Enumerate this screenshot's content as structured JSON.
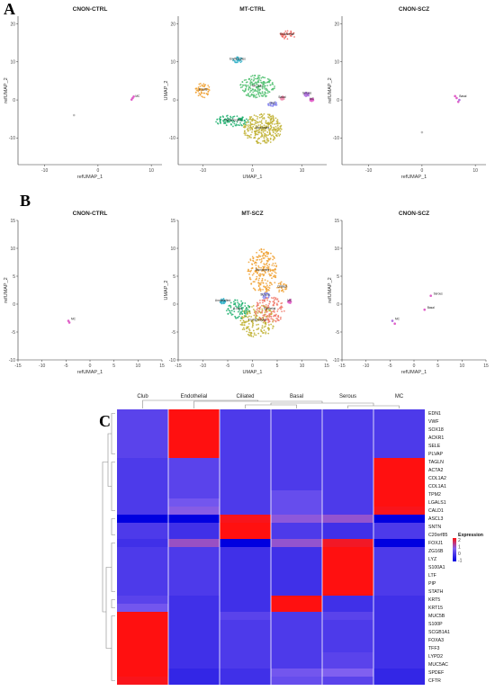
{
  "panel_labels": [
    "A",
    "B",
    "C"
  ],
  "umap_x_label": "refUMAP_1",
  "umap_y_label": "refUMAP_2",
  "umap_x_label_center": "UMAP_1",
  "umap_y_label_center": "UMAP_2",
  "chart_data": [
    {
      "type": "scatter",
      "title": "CNON-CTRL",
      "xlabel": "refUMAP_1",
      "ylabel": "refUMAP_2",
      "xlim": [
        -15,
        12
      ],
      "ylim": [
        -17,
        22
      ],
      "xticks": [
        "-10",
        "0",
        "10"
      ],
      "yticks": [
        "20",
        "10",
        "0",
        "-10"
      ],
      "cluster_labels": [
        "MC"
      ],
      "points": [
        {
          "x": 6.5,
          "y": 0.5,
          "color": "#e060c8"
        },
        {
          "x": 6.3,
          "y": 0.1,
          "color": "#e060c8"
        },
        {
          "x": 6.7,
          "y": 0.9,
          "color": "#e060c8"
        },
        {
          "x": -4.5,
          "y": -4.0,
          "color": "#bbbbbb"
        }
      ]
    },
    {
      "type": "scatter",
      "title": "MT-CTRL",
      "xlabel": "UMAP_1",
      "ylabel": "UMAP_2",
      "xlim": [
        -15,
        15
      ],
      "ylim": [
        -17,
        22
      ],
      "xticks": [
        "-10",
        "0",
        "10"
      ],
      "yticks": [
        "20",
        "10",
        "0",
        "-10"
      ],
      "cluster_labels": [
        "Endothelial",
        "Erythrocytes",
        "B cells",
        "T lymphocytes",
        "NK cells",
        "Monocytes",
        "Club",
        "Basal",
        "Serous",
        "MC"
      ],
      "clusters": [
        {
          "label": "Endothelial",
          "cx": 7,
          "cy": 17,
          "rx": 1.6,
          "ry": 1.2,
          "color": "#f0605a"
        },
        {
          "label": "Erythrocytes",
          "cx": -3,
          "cy": 10.5,
          "rx": 1.0,
          "ry": 0.8,
          "color": "#30b0c8"
        },
        {
          "label": "B cells",
          "cx": -10,
          "cy": 2.5,
          "rx": 1.5,
          "ry": 2.0,
          "color": "#f0a030"
        },
        {
          "label": "T lymphocytes",
          "cx": -4,
          "cy": -5.5,
          "rx": 3.5,
          "ry": 1.5,
          "color": "#20b070"
        },
        {
          "label": "NK cells",
          "cx": 1,
          "cy": 3.5,
          "rx": 3.5,
          "ry": 3.0,
          "color": "#50c070"
        },
        {
          "label": "Monocytes",
          "cx": 2,
          "cy": -7.5,
          "rx": 4.0,
          "ry": 4.0,
          "color": "#c0b030"
        },
        {
          "label": "Club",
          "cx": 4,
          "cy": -1,
          "rx": 1.0,
          "ry": 0.8,
          "color": "#8888ee"
        },
        {
          "label": "Basal",
          "cx": 6,
          "cy": 0.5,
          "rx": 0.5,
          "ry": 0.5,
          "color": "#f090b0"
        },
        {
          "label": "Serous",
          "cx": 11,
          "cy": 1.5,
          "rx": 0.6,
          "ry": 0.6,
          "color": "#b070e0"
        },
        {
          "label": "MC",
          "cx": 12,
          "cy": 0,
          "rx": 0.4,
          "ry": 0.4,
          "color": "#e060c8"
        }
      ]
    },
    {
      "type": "scatter",
      "title": "CNON-SCZ",
      "xlabel": "refUMAP_1",
      "ylabel": "refUMAP_2",
      "xlim": [
        -15,
        12
      ],
      "ylim": [
        -17,
        22
      ],
      "xticks": [
        "-10",
        "0",
        "10"
      ],
      "yticks": [
        "20",
        "10",
        "0",
        "-10"
      ],
      "cluster_labels": [
        "Basal"
      ],
      "points": [
        {
          "x": 6.5,
          "y": 0.5,
          "color": "#e060c8"
        },
        {
          "x": 6.8,
          "y": -0.5,
          "color": "#e060c8"
        },
        {
          "x": 6.2,
          "y": 1.0,
          "color": "#e060c8"
        },
        {
          "x": 7.0,
          "y": 0.0,
          "color": "#b070e0"
        },
        {
          "x": 0.0,
          "y": -8.5,
          "color": "#bbbbbb"
        }
      ]
    },
    {
      "type": "scatter",
      "title": "CNON-CTRL",
      "xlabel": "refUMAP_1",
      "ylabel": "refUMAP_2",
      "xlim": [
        -15,
        15
      ],
      "ylim": [
        -10,
        15
      ],
      "xticks": [
        "-15",
        "-10",
        "-5",
        "0",
        "5",
        "10",
        "15"
      ],
      "yticks": [
        "15",
        "10",
        "5",
        "0",
        "-5",
        "-10"
      ],
      "cluster_labels": [
        "MC"
      ],
      "points": [
        {
          "x": -4.5,
          "y": -3.0,
          "color": "#e060c8"
        },
        {
          "x": -4.3,
          "y": -3.3,
          "color": "#e060c8"
        }
      ]
    },
    {
      "type": "scatter",
      "title": "MT-SCZ",
      "xlabel": "UMAP_1",
      "ylabel": "UMAP_2",
      "xlim": [
        -15,
        15
      ],
      "ylim": [
        -10,
        15
      ],
      "xticks": [
        "-15",
        "-10",
        "-5",
        "0",
        "5",
        "10",
        "15"
      ],
      "yticks": [
        "15",
        "10",
        "5",
        "0",
        "-5",
        "-10"
      ],
      "cluster_labels": [
        "Ciliated",
        "Serous",
        "Basal",
        "Endothelial",
        "Club",
        "MC",
        "Erythrocytes",
        "Monocytes",
        "B cells",
        "NK cells",
        "Epithelial",
        "T lymphocytes",
        "Unclassified",
        "Goblet"
      ],
      "clusters": [
        {
          "label": "Monocytes",
          "cx": 2,
          "cy": 6,
          "rx": 3.0,
          "ry": 4.0,
          "color": "#f0a030"
        },
        {
          "label": "Ciliated",
          "cx": 6,
          "cy": 3,
          "rx": 1.0,
          "ry": 1.0,
          "color": "#f0a030"
        },
        {
          "label": "T lymphocytes",
          "cx": 1,
          "cy": -3,
          "rx": 3.5,
          "ry": 3.0,
          "color": "#c0b030"
        },
        {
          "label": "Epithelial",
          "cx": 3.5,
          "cy": -1,
          "rx": 3.0,
          "ry": 2.5,
          "color": "#f07868"
        },
        {
          "label": "B cells",
          "cx": -3,
          "cy": -1,
          "rx": 2.5,
          "ry": 1.8,
          "color": "#20b070"
        },
        {
          "label": "Unclassified",
          "cx": -6,
          "cy": 0.5,
          "rx": 0.6,
          "ry": 0.5,
          "color": "#30b0c8"
        },
        {
          "label": "Serous",
          "cx": 2.5,
          "cy": 1.5,
          "rx": 1.0,
          "ry": 0.6,
          "color": "#8888ee"
        },
        {
          "label": "MC",
          "cx": 7.5,
          "cy": 0.5,
          "rx": 0.4,
          "ry": 0.4,
          "color": "#e060c8"
        }
      ]
    },
    {
      "type": "scatter",
      "title": "CNON-SCZ",
      "xlabel": "refUMAP_1",
      "ylabel": "refUMAP_2",
      "xlim": [
        -15,
        15
      ],
      "ylim": [
        -10,
        15
      ],
      "xticks": [
        "-15",
        "-10",
        "-5",
        "0",
        "5",
        "10",
        "15"
      ],
      "yticks": [
        "15",
        "10",
        "5",
        "0",
        "-5",
        "-10"
      ],
      "cluster_labels": [
        "Serous",
        "Basal",
        "MC"
      ],
      "points": [
        {
          "x": 3.5,
          "y": 1.5,
          "color": "#e060c8"
        },
        {
          "x": 2.2,
          "y": -1.0,
          "color": "#e060c8"
        },
        {
          "x": -4.5,
          "y": -3.0,
          "color": "#b070e0"
        },
        {
          "x": -4.0,
          "y": -3.5,
          "color": "#e060c8"
        }
      ]
    },
    {
      "type": "heatmap",
      "columns": [
        "Club",
        "Endothelial",
        "Ciliated",
        "Basal",
        "Serous",
        "MC"
      ],
      "rows": [
        "EDN1",
        "VWF",
        "SOX18",
        "ACKR1",
        "SELE",
        "PLVAP",
        "TAGLN",
        "ACTA2",
        "COL1A2",
        "COL1A1",
        "TPM2",
        "LGALS1",
        "CALD1",
        "ASCL3",
        "SNTN",
        "C20orf85",
        "FOXJ1",
        "ZG16B",
        "LYZ",
        "S100A1",
        "LTF",
        "PIP",
        "STATH",
        "KRT5",
        "KRT15",
        "MUC5B",
        "S100P",
        "SCGB1A1",
        "FOXA3",
        "TFF3",
        "LYPD2",
        "MUC5AC",
        "SPDEF",
        "CFTR"
      ],
      "values": [
        [
          -0.3,
          2.0,
          -0.4,
          -0.4,
          -0.4,
          -0.4
        ],
        [
          -0.3,
          2.0,
          -0.4,
          -0.4,
          -0.4,
          -0.4
        ],
        [
          -0.3,
          2.0,
          -0.4,
          -0.4,
          -0.4,
          -0.4
        ],
        [
          -0.3,
          2.0,
          -0.4,
          -0.4,
          -0.4,
          -0.4
        ],
        [
          -0.3,
          2.0,
          -0.4,
          -0.4,
          -0.4,
          -0.4
        ],
        [
          -0.3,
          2.0,
          -0.4,
          -0.4,
          -0.4,
          -0.4
        ],
        [
          -0.4,
          -0.3,
          -0.4,
          -0.4,
          -0.4,
          2.0
        ],
        [
          -0.4,
          -0.3,
          -0.4,
          -0.4,
          -0.4,
          2.0
        ],
        [
          -0.4,
          -0.3,
          -0.4,
          -0.4,
          -0.4,
          2.0
        ],
        [
          -0.4,
          -0.3,
          -0.4,
          -0.4,
          -0.4,
          2.0
        ],
        [
          -0.4,
          -0.3,
          -0.4,
          -0.2,
          -0.4,
          2.0
        ],
        [
          -0.4,
          -0.1,
          -0.4,
          -0.2,
          -0.4,
          2.0
        ],
        [
          -0.4,
          0.1,
          -0.4,
          -0.2,
          -0.4,
          1.9
        ],
        [
          -1.0,
          -1.0,
          1.9,
          0.2,
          0.3,
          -1.0
        ],
        [
          -0.4,
          -0.5,
          2.0,
          -0.4,
          -0.5,
          -0.4
        ],
        [
          -0.4,
          -0.5,
          2.0,
          -0.4,
          -0.5,
          -0.4
        ],
        [
          -0.5,
          0.4,
          -1.0,
          0.3,
          1.8,
          -1.0
        ],
        [
          -0.4,
          -0.4,
          -0.5,
          -0.5,
          2.0,
          -0.4
        ],
        [
          -0.4,
          -0.4,
          -0.5,
          -0.5,
          2.0,
          -0.4
        ],
        [
          -0.4,
          -0.4,
          -0.5,
          -0.5,
          2.0,
          -0.4
        ],
        [
          -0.4,
          -0.4,
          -0.5,
          -0.5,
          2.0,
          -0.4
        ],
        [
          -0.4,
          -0.4,
          -0.5,
          -0.5,
          2.0,
          -0.4
        ],
        [
          -0.4,
          -0.4,
          -0.5,
          -0.5,
          2.0,
          -0.4
        ],
        [
          -0.3,
          -0.5,
          -0.5,
          2.0,
          -0.5,
          -0.5
        ],
        [
          -0.1,
          -0.5,
          -0.5,
          2.0,
          -0.5,
          -0.5
        ],
        [
          2.0,
          -0.5,
          -0.3,
          -0.4,
          -0.3,
          -0.5
        ],
        [
          2.0,
          -0.5,
          -0.4,
          -0.4,
          -0.4,
          -0.5
        ],
        [
          2.0,
          -0.5,
          -0.4,
          -0.4,
          -0.4,
          -0.5
        ],
        [
          2.0,
          -0.5,
          -0.4,
          -0.4,
          -0.4,
          -0.5
        ],
        [
          2.0,
          -0.5,
          -0.4,
          -0.4,
          -0.4,
          -0.5
        ],
        [
          2.0,
          -0.5,
          -0.4,
          -0.4,
          -0.3,
          -0.5
        ],
        [
          2.0,
          -0.5,
          -0.4,
          -0.4,
          -0.3,
          -0.5
        ],
        [
          2.0,
          -0.6,
          -0.5,
          -0.1,
          0.0,
          -0.6
        ],
        [
          1.9,
          -0.6,
          -0.5,
          -0.2,
          -0.3,
          -0.6
        ]
      ],
      "legend_title": "Expression",
      "legend_ticks": [
        "2",
        "1",
        "0",
        "-1"
      ],
      "colors": {
        "low": "#0000e0",
        "mid": "#8060f0",
        "high": "#ff1010"
      }
    }
  ]
}
